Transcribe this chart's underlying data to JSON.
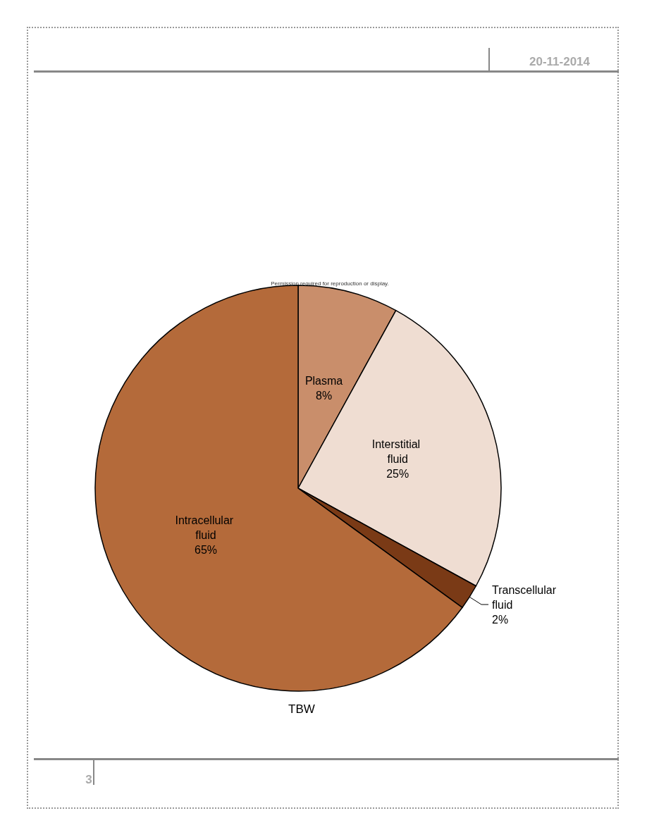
{
  "chart_data": {
    "type": "pie",
    "title": "TBW",
    "categories": [
      "Plasma",
      "Interstitial fluid",
      "Transcellular fluid",
      "Intracellular fluid"
    ],
    "values": [
      8,
      25,
      2,
      65
    ],
    "value_labels": [
      "8%",
      "25%",
      "2%",
      "65%"
    ],
    "colors": [
      "#c98e6b",
      "#efddd2",
      "#7a3a16",
      "#b46a3a"
    ],
    "annotations": [
      "Permission required for reproduction or display.",
      "20-11-2014",
      "3"
    ]
  }
}
